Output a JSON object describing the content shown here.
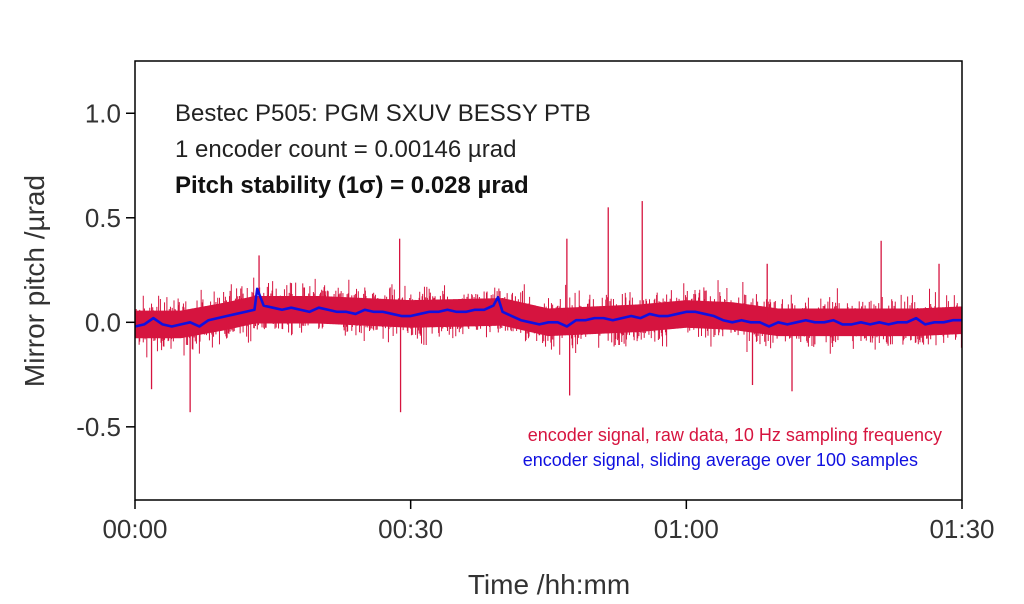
{
  "chart_data": {
    "type": "line",
    "xlabel": "Time /hh:mm",
    "ylabel": "Mirror pitch /µrad",
    "xlim_minutes": [
      0,
      90
    ],
    "ylim": [
      -0.85,
      1.25
    ],
    "x_ticks": [
      {
        "minutes": 0,
        "label": "00:00"
      },
      {
        "minutes": 30,
        "label": "00:30"
      },
      {
        "minutes": 60,
        "label": "01:00"
      },
      {
        "minutes": 90,
        "label": "01:30"
      }
    ],
    "y_ticks": [
      {
        "value": 1.0,
        "label": "1.0"
      },
      {
        "value": 0.5,
        "label": "0.5"
      },
      {
        "value": 0.0,
        "label": "0.0"
      },
      {
        "value": -0.5,
        "label": "-0.5"
      }
    ],
    "grid": false,
    "annotations": {
      "line1": "Bestec P505: PGM SXUV BESSY PTB",
      "line2": "1 encoder count = 0.00146 µrad",
      "line3": "Pitch stability (1σ) = 0.028 µrad"
    },
    "legend_position": "bottom-right",
    "series": [
      {
        "name": "encoder signal, raw data, 10 Hz sampling frequency",
        "color": "#d6143f",
        "band_half_width": 0.12,
        "baseline_minutes": [
          0,
          5,
          10,
          13,
          20,
          30,
          40,
          45,
          50,
          55,
          60,
          65,
          70,
          75,
          80,
          85,
          90
        ],
        "baseline_values": [
          -0.01,
          -0.01,
          0.03,
          0.06,
          0.06,
          0.04,
          0.05,
          0.0,
          0.01,
          0.02,
          0.04,
          0.03,
          0.0,
          0.0,
          0.0,
          0.0,
          0.01
        ],
        "spikes": [
          {
            "minutes": 6.0,
            "value": -0.43
          },
          {
            "minutes": 1.8,
            "value": -0.32
          },
          {
            "minutes": 13.5,
            "value": 0.32
          },
          {
            "minutes": 28.8,
            "value": 0.4
          },
          {
            "minutes": 28.9,
            "value": -0.43
          },
          {
            "minutes": 47.0,
            "value": 0.4
          },
          {
            "minutes": 47.3,
            "value": -0.35
          },
          {
            "minutes": 51.5,
            "value": 0.55
          },
          {
            "minutes": 55.2,
            "value": 0.58
          },
          {
            "minutes": 67.2,
            "value": -0.3
          },
          {
            "minutes": 68.8,
            "value": 0.28
          },
          {
            "minutes": 71.5,
            "value": -0.33
          },
          {
            "minutes": 81.2,
            "value": 0.39
          },
          {
            "minutes": 87.5,
            "value": 0.28
          }
        ]
      },
      {
        "name": "encoder signal, sliding average over 100 samples",
        "color": "#1010e0",
        "minutes": [
          0,
          1,
          2,
          3,
          4,
          5,
          6,
          7,
          8,
          9,
          10,
          11,
          12,
          13,
          13.3,
          14,
          15,
          16,
          17,
          18,
          19,
          20,
          21,
          22,
          23,
          24,
          25,
          26,
          27,
          28,
          29,
          30,
          31,
          32,
          33,
          34,
          35,
          36,
          37,
          38,
          39,
          39.5,
          40,
          41,
          42,
          43,
          44,
          45,
          46,
          47,
          48,
          49,
          50,
          51,
          52,
          53,
          54,
          55,
          56,
          57,
          58,
          59,
          60,
          61,
          62,
          63,
          64,
          65,
          66,
          67,
          68,
          69,
          70,
          71,
          72,
          73,
          74,
          75,
          76,
          77,
          78,
          79,
          80,
          81,
          82,
          83,
          84,
          85,
          86,
          87,
          88,
          89,
          90
        ],
        "values": [
          -0.02,
          -0.01,
          0.02,
          -0.01,
          -0.02,
          -0.01,
          0.0,
          -0.02,
          0.01,
          0.02,
          0.03,
          0.04,
          0.05,
          0.06,
          0.16,
          0.08,
          0.07,
          0.06,
          0.07,
          0.06,
          0.05,
          0.07,
          0.06,
          0.05,
          0.05,
          0.04,
          0.06,
          0.05,
          0.05,
          0.04,
          0.03,
          0.03,
          0.04,
          0.05,
          0.05,
          0.06,
          0.05,
          0.05,
          0.06,
          0.06,
          0.08,
          0.12,
          0.05,
          0.03,
          0.01,
          0.0,
          -0.01,
          0.0,
          0.0,
          -0.02,
          0.01,
          0.01,
          0.02,
          0.02,
          0.01,
          0.02,
          0.03,
          0.02,
          0.04,
          0.03,
          0.03,
          0.04,
          0.05,
          0.05,
          0.04,
          0.03,
          0.01,
          0.0,
          0.01,
          0.0,
          0.0,
          -0.02,
          0.0,
          -0.01,
          0.0,
          0.01,
          0.0,
          0.0,
          0.01,
          -0.01,
          -0.01,
          0.0,
          -0.01,
          0.0,
          -0.01,
          0.0,
          0.0,
          0.02,
          -0.01,
          0.0,
          0.0,
          0.01,
          0.01
        ]
      }
    ]
  }
}
